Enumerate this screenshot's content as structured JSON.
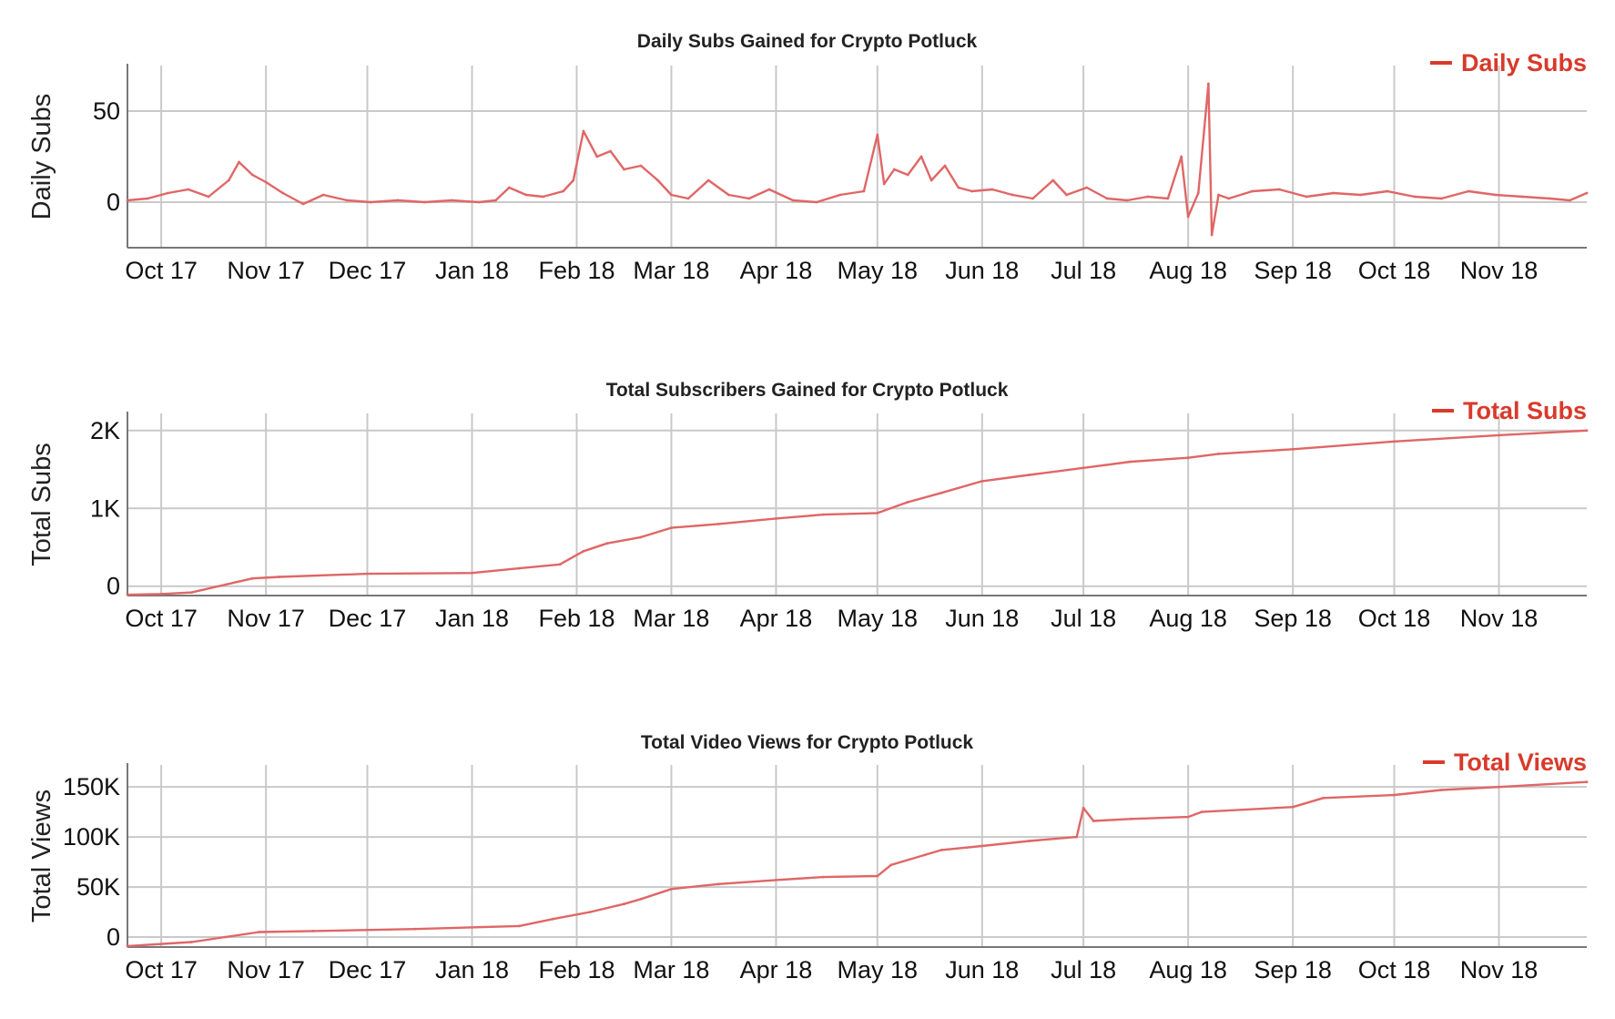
{
  "colors": {
    "series": "#e06666",
    "legend": "#d93a2b",
    "grid": "#c9c9c9",
    "axis": "#777777"
  },
  "chart_data": [
    {
      "type": "line",
      "title": "Daily Subs Gained for Crypto Potluck",
      "ylabel": "Daily Subs",
      "xlabel": "",
      "legend": "Daily Subs",
      "legend_position": "top-right",
      "grid": true,
      "x_ticks": [
        "Oct 17",
        "Nov 17",
        "Dec 17",
        "Jan 18",
        "Feb 18",
        "Mar 18",
        "Apr 18",
        "May 18",
        "Jun 18",
        "Jul 18",
        "Aug 18",
        "Sep 18",
        "Oct 18",
        "Nov 18"
      ],
      "y_ticks": [
        {
          "value": 0,
          "label": "0"
        },
        {
          "value": 50,
          "label": "50"
        }
      ],
      "x_range": [
        "2017-09-21",
        "2018-11-27"
      ],
      "ylim": [
        -25,
        75
      ],
      "series": [
        {
          "name": "Daily Subs",
          "x": [
            "2017-09-21",
            "2017-09-27",
            "2017-10-03",
            "2017-10-09",
            "2017-10-15",
            "2017-10-21",
            "2017-10-24",
            "2017-10-28",
            "2017-11-01",
            "2017-11-06",
            "2017-11-12",
            "2017-11-18",
            "2017-11-25",
            "2017-12-02",
            "2017-12-10",
            "2017-12-18",
            "2017-12-26",
            "2018-01-03",
            "2018-01-08",
            "2018-01-12",
            "2018-01-17",
            "2018-01-22",
            "2018-01-28",
            "2018-01-31",
            "2018-02-03",
            "2018-02-07",
            "2018-02-11",
            "2018-02-15",
            "2018-02-20",
            "2018-02-25",
            "2018-03-01",
            "2018-03-06",
            "2018-03-12",
            "2018-03-18",
            "2018-03-24",
            "2018-03-30",
            "2018-04-06",
            "2018-04-13",
            "2018-04-20",
            "2018-04-27",
            "2018-05-01",
            "2018-05-03",
            "2018-05-06",
            "2018-05-10",
            "2018-05-14",
            "2018-05-17",
            "2018-05-21",
            "2018-05-25",
            "2018-05-29",
            "2018-06-04",
            "2018-06-10",
            "2018-06-16",
            "2018-06-22",
            "2018-06-26",
            "2018-07-02",
            "2018-07-08",
            "2018-07-14",
            "2018-07-20",
            "2018-07-26",
            "2018-07-30",
            "2018-08-01",
            "2018-08-04",
            "2018-08-07",
            "2018-08-08",
            "2018-08-10",
            "2018-08-13",
            "2018-08-20",
            "2018-08-28",
            "2018-09-05",
            "2018-09-13",
            "2018-09-21",
            "2018-09-29",
            "2018-10-07",
            "2018-10-15",
            "2018-10-23",
            "2018-10-31",
            "2018-11-08",
            "2018-11-16",
            "2018-11-22",
            "2018-11-27"
          ],
          "values": [
            1,
            2,
            5,
            7,
            3,
            12,
            22,
            15,
            11,
            5,
            -1,
            4,
            1,
            0,
            1,
            0,
            1,
            0,
            1,
            8,
            4,
            3,
            6,
            12,
            39,
            25,
            28,
            18,
            20,
            12,
            4,
            2,
            12,
            4,
            2,
            7,
            1,
            0,
            4,
            6,
            37,
            10,
            18,
            15,
            25,
            12,
            20,
            8,
            6,
            7,
            4,
            2,
            12,
            4,
            8,
            2,
            1,
            3,
            2,
            25,
            -8,
            5,
            65,
            -18,
            4,
            2,
            6,
            7,
            3,
            5,
            4,
            6,
            3,
            2,
            6,
            4,
            3,
            2,
            1,
            5
          ]
        }
      ]
    },
    {
      "type": "line",
      "title": "Total Subscribers Gained for Crypto Potluck",
      "ylabel": "Total Subs",
      "xlabel": "",
      "legend": "Total Subs",
      "legend_position": "top-right",
      "grid": true,
      "x_ticks": [
        "Oct 17",
        "Nov 17",
        "Dec 17",
        "Jan 18",
        "Feb 18",
        "Mar 18",
        "Apr 18",
        "May 18",
        "Jun 18",
        "Jul 18",
        "Aug 18",
        "Sep 18",
        "Oct 18",
        "Nov 18"
      ],
      "y_ticks": [
        {
          "value": 0,
          "label": "0"
        },
        {
          "value": 1000,
          "label": "1K"
        },
        {
          "value": 2000,
          "label": "2K"
        }
      ],
      "x_range": [
        "2017-09-21",
        "2018-11-27"
      ],
      "ylim": [
        -120,
        2220
      ],
      "series": [
        {
          "name": "Total Subs",
          "x": [
            "2017-09-21",
            "2017-10-01",
            "2017-10-10",
            "2017-10-20",
            "2017-10-28",
            "2017-11-05",
            "2017-12-01",
            "2018-01-01",
            "2018-01-15",
            "2018-01-27",
            "2018-02-03",
            "2018-02-10",
            "2018-02-20",
            "2018-03-01",
            "2018-03-15",
            "2018-04-01",
            "2018-04-15",
            "2018-05-01",
            "2018-05-10",
            "2018-05-20",
            "2018-06-01",
            "2018-06-15",
            "2018-07-01",
            "2018-07-15",
            "2018-08-01",
            "2018-08-10",
            "2018-09-01",
            "2018-10-01",
            "2018-11-01",
            "2018-11-27"
          ],
          "values": [
            -110,
            -100,
            -80,
            20,
            100,
            120,
            160,
            170,
            230,
            280,
            450,
            550,
            630,
            750,
            800,
            870,
            920,
            940,
            1080,
            1200,
            1350,
            1430,
            1520,
            1600,
            1650,
            1700,
            1760,
            1860,
            1940,
            2000
          ]
        }
      ]
    },
    {
      "type": "line",
      "title": "Total Video Views for Crypto Potluck",
      "ylabel": "Total Views",
      "xlabel": "",
      "legend": "Total Views",
      "legend_position": "top-right",
      "grid": true,
      "x_ticks": [
        "Oct 17",
        "Nov 17",
        "Dec 17",
        "Jan 18",
        "Feb 18",
        "Mar 18",
        "Apr 18",
        "May 18",
        "Jun 18",
        "Jul 18",
        "Aug 18",
        "Sep 18",
        "Oct 18",
        "Nov 18"
      ],
      "y_ticks": [
        {
          "value": 0,
          "label": "0"
        },
        {
          "value": 50000,
          "label": "50K"
        },
        {
          "value": 100000,
          "label": "100K"
        },
        {
          "value": 150000,
          "label": "150K"
        }
      ],
      "x_range": [
        "2017-09-21",
        "2018-11-27"
      ],
      "ylim": [
        -10000,
        172000
      ],
      "series": [
        {
          "name": "Total Views",
          "x": [
            "2017-09-21",
            "2017-10-10",
            "2017-10-20",
            "2017-10-30",
            "2017-11-15",
            "2017-12-15",
            "2018-01-15",
            "2018-01-25",
            "2018-02-05",
            "2018-02-15",
            "2018-02-20",
            "2018-03-01",
            "2018-03-15",
            "2018-04-01",
            "2018-04-15",
            "2018-05-01",
            "2018-05-05",
            "2018-05-15",
            "2018-05-20",
            "2018-06-01",
            "2018-06-15",
            "2018-06-29",
            "2018-07-01",
            "2018-07-04",
            "2018-07-15",
            "2018-08-01",
            "2018-08-05",
            "2018-09-01",
            "2018-09-10",
            "2018-10-01",
            "2018-10-15",
            "2018-11-01",
            "2018-11-27"
          ],
          "values": [
            -9000,
            -5000,
            0,
            5000,
            6000,
            8000,
            11000,
            18000,
            25000,
            33000,
            38000,
            48000,
            53000,
            57000,
            60000,
            61000,
            72000,
            82000,
            87000,
            91000,
            96000,
            100000,
            129000,
            116000,
            118000,
            120000,
            125000,
            130000,
            139000,
            142000,
            147000,
            150000,
            155000
          ]
        }
      ]
    }
  ]
}
